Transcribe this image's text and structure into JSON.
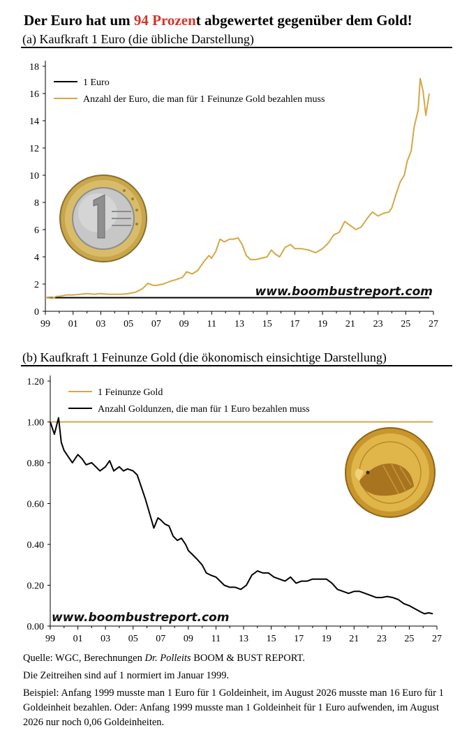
{
  "header": {
    "title_pre": "Der Euro hat um ",
    "title_highlight": "94 Prozen",
    "title_post": "t abgewertet gegenüber dem Gold!",
    "highlight_color": "#d2342a"
  },
  "colors": {
    "gold_line": "#d4a843",
    "black_line": "#000000"
  },
  "icons": {
    "top_chart_image": "euro-coin-icon",
    "bottom_chart_image": "gold-eagle-coin-icon"
  },
  "chart_data": [
    {
      "type": "line",
      "title": "(a) Kaufkraft 1 Euro (die übliche Darstellung)",
      "watermark": "www.boombustreport.com",
      "x_ticks": [
        "99",
        "01",
        "03",
        "05",
        "07",
        "09",
        "11",
        "13",
        "15",
        "17",
        "19",
        "21",
        "23",
        "25",
        "27"
      ],
      "x_range": [
        1999,
        2027
      ],
      "y_ticks": [
        "0",
        "2",
        "4",
        "6",
        "8",
        "10",
        "12",
        "14",
        "16",
        "18"
      ],
      "y_range": [
        0,
        18
      ],
      "legend_position": "top-left",
      "series": [
        {
          "name": "1 Euro",
          "color": "#000000",
          "points": [
            [
              1999,
              1.0
            ],
            [
              2026.7,
              1.0
            ]
          ]
        },
        {
          "name": "Anzahl der Euro, die man für 1 Feinunze Gold bezahlen muss",
          "color": "#d4a843",
          "points": [
            [
              1999.0,
              1.0
            ],
            [
              1999.5,
              0.95
            ],
            [
              1999.8,
              1.1
            ],
            [
              2000.0,
              1.1
            ],
            [
              2000.5,
              1.2
            ],
            [
              2001.0,
              1.2
            ],
            [
              2001.5,
              1.25
            ],
            [
              2002.0,
              1.3
            ],
            [
              2002.5,
              1.25
            ],
            [
              2003.0,
              1.3
            ],
            [
              2003.5,
              1.25
            ],
            [
              2004.0,
              1.25
            ],
            [
              2004.5,
              1.25
            ],
            [
              2005.0,
              1.3
            ],
            [
              2005.5,
              1.4
            ],
            [
              2006.0,
              1.65
            ],
            [
              2006.4,
              2.05
            ],
            [
              2006.8,
              1.9
            ],
            [
              2007.0,
              1.9
            ],
            [
              2007.5,
              2.0
            ],
            [
              2008.0,
              2.2
            ],
            [
              2008.5,
              2.35
            ],
            [
              2008.9,
              2.5
            ],
            [
              2009.2,
              2.9
            ],
            [
              2009.6,
              2.75
            ],
            [
              2010.0,
              3.0
            ],
            [
              2010.4,
              3.6
            ],
            [
              2010.8,
              4.1
            ],
            [
              2011.0,
              3.9
            ],
            [
              2011.3,
              4.4
            ],
            [
              2011.6,
              5.3
            ],
            [
              2011.9,
              5.1
            ],
            [
              2012.3,
              5.3
            ],
            [
              2012.6,
              5.3
            ],
            [
              2012.9,
              5.4
            ],
            [
              2013.2,
              4.9
            ],
            [
              2013.5,
              4.1
            ],
            [
              2013.8,
              3.8
            ],
            [
              2014.2,
              3.8
            ],
            [
              2014.6,
              3.9
            ],
            [
              2015.0,
              4.0
            ],
            [
              2015.3,
              4.5
            ],
            [
              2015.6,
              4.2
            ],
            [
              2015.9,
              4.0
            ],
            [
              2016.3,
              4.7
            ],
            [
              2016.7,
              4.9
            ],
            [
              2017.0,
              4.6
            ],
            [
              2017.5,
              4.6
            ],
            [
              2018.0,
              4.5
            ],
            [
              2018.5,
              4.3
            ],
            [
              2019.0,
              4.6
            ],
            [
              2019.4,
              5.0
            ],
            [
              2019.8,
              5.6
            ],
            [
              2020.2,
              5.8
            ],
            [
              2020.6,
              6.6
            ],
            [
              2021.0,
              6.3
            ],
            [
              2021.4,
              6.0
            ],
            [
              2021.8,
              6.2
            ],
            [
              2022.2,
              6.8
            ],
            [
              2022.6,
              7.3
            ],
            [
              2023.0,
              7.0
            ],
            [
              2023.4,
              7.2
            ],
            [
              2023.8,
              7.3
            ],
            [
              2024.0,
              7.6
            ],
            [
              2024.3,
              8.6
            ],
            [
              2024.6,
              9.5
            ],
            [
              2024.9,
              10.0
            ],
            [
              2025.1,
              11.0
            ],
            [
              2025.4,
              11.8
            ],
            [
              2025.6,
              13.5
            ],
            [
              2025.9,
              14.8
            ],
            [
              2026.05,
              17.1
            ],
            [
              2026.25,
              16.2
            ],
            [
              2026.45,
              14.4
            ],
            [
              2026.7,
              16.0
            ]
          ]
        }
      ]
    },
    {
      "type": "line",
      "title": "(b) Kaufkraft 1 Feinunze Gold (die ökonomisch einsichtige Darstellung)",
      "watermark": "www.boombustreport.com",
      "x_ticks": [
        "99",
        "01",
        "03",
        "05",
        "07",
        "09",
        "11",
        "13",
        "15",
        "17",
        "19",
        "21",
        "23",
        "25",
        "27"
      ],
      "x_range": [
        1999,
        2027
      ],
      "y_ticks": [
        "0.00",
        "0.20",
        "0.40",
        "0.60",
        "0.80",
        "1.00",
        "1.20"
      ],
      "y_range": [
        0,
        1.2
      ],
      "legend_position": "top-left",
      "series": [
        {
          "name": "1 Feinunze Gold",
          "color": "#d4a843",
          "points": [
            [
              1999,
              1.0
            ],
            [
              2026.7,
              1.0
            ]
          ]
        },
        {
          "name": "Anzahl Goldunzen, die man für 1 Euro bezahlen muss",
          "color": "#000000",
          "points": [
            [
              1999.0,
              1.0
            ],
            [
              1999.3,
              0.94
            ],
            [
              1999.6,
              1.02
            ],
            [
              1999.8,
              0.9
            ],
            [
              2000.0,
              0.86
            ],
            [
              2000.3,
              0.83
            ],
            [
              2000.6,
              0.8
            ],
            [
              2001.0,
              0.84
            ],
            [
              2001.3,
              0.82
            ],
            [
              2001.6,
              0.79
            ],
            [
              2002.0,
              0.8
            ],
            [
              2002.3,
              0.78
            ],
            [
              2002.6,
              0.76
            ],
            [
              2003.0,
              0.78
            ],
            [
              2003.3,
              0.81
            ],
            [
              2003.6,
              0.76
            ],
            [
              2004.0,
              0.78
            ],
            [
              2004.3,
              0.76
            ],
            [
              2004.6,
              0.77
            ],
            [
              2005.0,
              0.76
            ],
            [
              2005.3,
              0.74
            ],
            [
              2005.6,
              0.68
            ],
            [
              2005.9,
              0.62
            ],
            [
              2006.2,
              0.55
            ],
            [
              2006.5,
              0.48
            ],
            [
              2006.8,
              0.53
            ],
            [
              2007.0,
              0.52
            ],
            [
              2007.3,
              0.5
            ],
            [
              2007.6,
              0.49
            ],
            [
              2007.9,
              0.44
            ],
            [
              2008.2,
              0.42
            ],
            [
              2008.5,
              0.43
            ],
            [
              2008.8,
              0.4
            ],
            [
              2009.0,
              0.37
            ],
            [
              2009.3,
              0.35
            ],
            [
              2009.6,
              0.33
            ],
            [
              2010.0,
              0.3
            ],
            [
              2010.3,
              0.26
            ],
            [
              2010.6,
              0.25
            ],
            [
              2011.0,
              0.24
            ],
            [
              2011.3,
              0.22
            ],
            [
              2011.6,
              0.2
            ],
            [
              2012.0,
              0.19
            ],
            [
              2012.4,
              0.19
            ],
            [
              2012.8,
              0.18
            ],
            [
              2013.2,
              0.2
            ],
            [
              2013.6,
              0.25
            ],
            [
              2014.0,
              0.27
            ],
            [
              2014.4,
              0.26
            ],
            [
              2014.8,
              0.26
            ],
            [
              2015.2,
              0.24
            ],
            [
              2015.6,
              0.23
            ],
            [
              2016.0,
              0.22
            ],
            [
              2016.4,
              0.24
            ],
            [
              2016.8,
              0.21
            ],
            [
              2017.2,
              0.22
            ],
            [
              2017.6,
              0.22
            ],
            [
              2018.0,
              0.23
            ],
            [
              2018.5,
              0.23
            ],
            [
              2019.0,
              0.23
            ],
            [
              2019.4,
              0.21
            ],
            [
              2019.8,
              0.18
            ],
            [
              2020.2,
              0.17
            ],
            [
              2020.6,
              0.16
            ],
            [
              2021.0,
              0.17
            ],
            [
              2021.4,
              0.17
            ],
            [
              2021.8,
              0.16
            ],
            [
              2022.2,
              0.15
            ],
            [
              2022.6,
              0.14
            ],
            [
              2023.0,
              0.14
            ],
            [
              2023.4,
              0.145
            ],
            [
              2023.8,
              0.14
            ],
            [
              2024.2,
              0.13
            ],
            [
              2024.6,
              0.11
            ],
            [
              2025.0,
              0.1
            ],
            [
              2025.4,
              0.085
            ],
            [
              2025.8,
              0.07
            ],
            [
              2026.1,
              0.06
            ],
            [
              2026.4,
              0.065
            ],
            [
              2026.7,
              0.06
            ]
          ]
        }
      ]
    }
  ],
  "notes": {
    "source_pre": "Quelle: WGC, Berechnungen ",
    "source_author": "Dr. Polleits",
    "source_post": " BOOM & BUST REPORT.",
    "normalization": "Die Zeitreihen sind auf 1 normiert im Januar 1999.",
    "example": "Beispiel: Anfang 1999 musste man 1 Euro für 1 Goldeinheit, im August 2026 musste man 16 Euro für 1 Goldeinheit bezahlen. Oder: Anfang 1999 musste man 1 Goldeinheit für 1 Euro aufwenden, im August 2026 nur noch 0,06 Goldeinheiten."
  }
}
